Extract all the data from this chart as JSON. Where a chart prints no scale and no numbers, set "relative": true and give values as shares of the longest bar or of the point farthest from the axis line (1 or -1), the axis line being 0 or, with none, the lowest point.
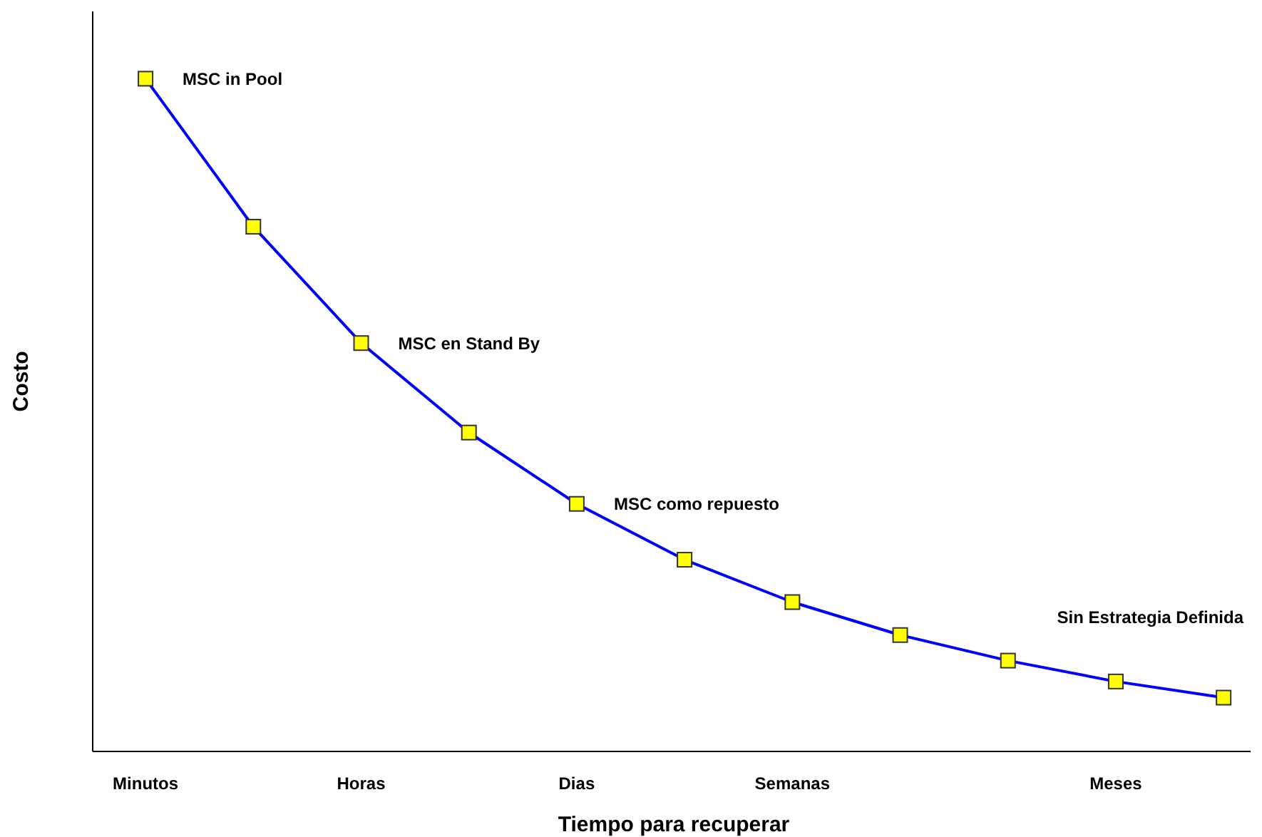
{
  "chart_data": {
    "type": "line",
    "relative": true,
    "xlabel": "Tiempo para recuperar",
    "ylabel": "Costo",
    "categories": [
      "Minutos",
      null,
      "Horas",
      null,
      "Dias",
      null,
      "Semanas",
      null,
      null,
      "Meses",
      null
    ],
    "series": [
      {
        "color": "#0000ff",
        "values": [
          1,
          0.78,
          0.607,
          0.474,
          0.368,
          0.285,
          0.222,
          0.173,
          0.135,
          0.104,
          0.08
        ]
      }
    ],
    "marker": "square",
    "line_style": "solid",
    "grid": false,
    "legend": false,
    "annotations": [
      {
        "text": "MSC in Pool",
        "x": "Minutos",
        "y": 1
      },
      {
        "text": "MSC en Stand By",
        "x": "Horas",
        "y": 0.607
      },
      {
        "text": "MSC como repuesto",
        "x": "Dias",
        "y": 0.368
      },
      "Sin Estrategia Definida"
    ]
  }
}
